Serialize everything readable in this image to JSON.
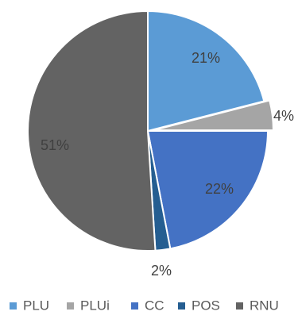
{
  "chart_data": {
    "type": "pie",
    "title": "",
    "labels": [
      "PLU",
      "PLUi",
      "CC",
      "POS",
      "RNU"
    ],
    "values": [
      21,
      4,
      22,
      2,
      51
    ],
    "data_labels": [
      "21%",
      "4%",
      "22%",
      "2%",
      "51%"
    ],
    "colors": [
      "#5b9bd5",
      "#a5a5a5",
      "#4472c4",
      "#255e91",
      "#636363"
    ],
    "start_angle_deg": 0,
    "direction": "clockwise",
    "legend": {
      "position": "bottom"
    }
  }
}
